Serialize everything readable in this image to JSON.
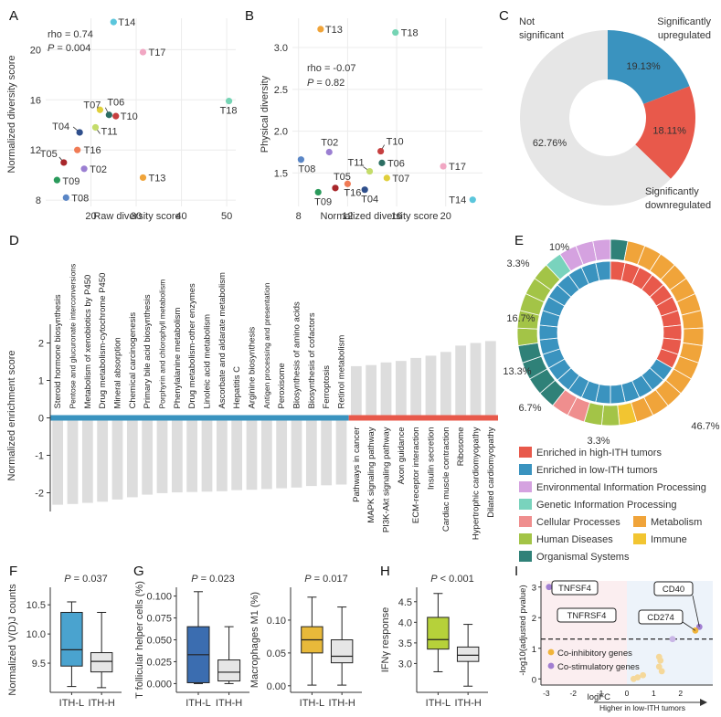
{
  "colors": {
    "up": "#e8594b",
    "down": "#3a93bf",
    "ns": "#e6e6e6",
    "bar_gray": "#dddddd",
    "metabolism": "#f0a43a",
    "immune": "#f2c531",
    "env": "#d5a2e0",
    "genetic": "#79d3bd",
    "cellular": "#ef8e8e",
    "human": "#a3c447",
    "organismal": "#2f8178",
    "box_blue": "#3b6db0",
    "box_gold": "#e8b93a",
    "box_lime": "#b6d13a",
    "box_gray": "#e6e6e6",
    "inhib": "#f0b43a",
    "costim": "#a17ed1"
  },
  "chart_data": [
    {
      "id": "A",
      "type": "scatter",
      "panel_letter": "A",
      "xlabel": "Raw diversity score",
      "ylabel": "Normalized diversity score",
      "xlim": [
        10,
        52
      ],
      "ylim": [
        7.5,
        22.5
      ],
      "xticks": [
        20,
        30,
        40,
        50
      ],
      "yticks": [
        8,
        12,
        16,
        20
      ],
      "stat_rho": "rho = 0.74",
      "stat_p_label": "P",
      "stat_p_value": " = 0.004",
      "points": [
        {
          "label": "T14",
          "x": 25,
          "y": 22.2,
          "color": "#5bc6dc"
        },
        {
          "label": "T17",
          "x": 31.5,
          "y": 19.8,
          "color": "#f1a7c3"
        },
        {
          "label": "T18",
          "x": 50.5,
          "y": 15.9,
          "color": "#75d4b4"
        },
        {
          "label": "T06",
          "x": 24,
          "y": 14.8,
          "color": "#2c6e63"
        },
        {
          "label": "T07",
          "x": 22,
          "y": 15.2,
          "color": "#e0cf3c"
        },
        {
          "label": "T10",
          "x": 25.5,
          "y": 14.7,
          "color": "#c63f3f"
        },
        {
          "label": "T11",
          "x": 21,
          "y": 13.8,
          "color": "#c4dc6a"
        },
        {
          "label": "T04",
          "x": 17.5,
          "y": 13.4,
          "color": "#2f4f8c"
        },
        {
          "label": "T16",
          "x": 17,
          "y": 12.0,
          "color": "#f07b55"
        },
        {
          "label": "T05",
          "x": 14,
          "y": 11.0,
          "color": "#a8262a"
        },
        {
          "label": "T02",
          "x": 18.5,
          "y": 10.5,
          "color": "#9b7fd2"
        },
        {
          "label": "T13",
          "x": 31.5,
          "y": 9.8,
          "color": "#f0a43a"
        },
        {
          "label": "T09",
          "x": 12.5,
          "y": 9.6,
          "color": "#2a9a5b"
        },
        {
          "label": "T08",
          "x": 14.5,
          "y": 8.2,
          "color": "#5a86c6"
        }
      ]
    },
    {
      "id": "B",
      "type": "scatter",
      "panel_letter": "B",
      "xlabel": "Normalized diversity score",
      "ylabel": "Physical diversity",
      "xlim": [
        7.5,
        23
      ],
      "ylim": [
        1.1,
        3.35
      ],
      "xticks": [
        8,
        12,
        16,
        20
      ],
      "yticks": [
        1.5,
        2.0,
        2.5,
        3.0
      ],
      "stat_rho": "rho = -0.07",
      "stat_p_label": "P",
      "stat_p_value": " = 0.82",
      "points": [
        {
          "label": "T13",
          "x": 9.8,
          "y": 3.22,
          "color": "#f0a43a"
        },
        {
          "label": "T18",
          "x": 15.9,
          "y": 3.18,
          "color": "#75d4b4"
        },
        {
          "label": "T02",
          "x": 10.5,
          "y": 1.75,
          "color": "#9b7fd2"
        },
        {
          "label": "T10",
          "x": 14.7,
          "y": 1.76,
          "color": "#c63f3f"
        },
        {
          "label": "T08",
          "x": 8.2,
          "y": 1.66,
          "color": "#5a86c6"
        },
        {
          "label": "T11",
          "x": 13.8,
          "y": 1.52,
          "color": "#c4dc6a"
        },
        {
          "label": "T06",
          "x": 14.8,
          "y": 1.62,
          "color": "#2c6e63"
        },
        {
          "label": "T05",
          "x": 11.0,
          "y": 1.32,
          "color": "#a8262a"
        },
        {
          "label": "T16",
          "x": 12.0,
          "y": 1.37,
          "color": "#f07b55"
        },
        {
          "label": "T17",
          "x": 19.8,
          "y": 1.58,
          "color": "#f1a7c3"
        },
        {
          "label": "T07",
          "x": 15.2,
          "y": 1.44,
          "color": "#e0cf3c"
        },
        {
          "label": "T09",
          "x": 9.6,
          "y": 1.27,
          "color": "#2a9a5b"
        },
        {
          "label": "T04",
          "x": 13.4,
          "y": 1.3,
          "color": "#2f4f8c"
        },
        {
          "label": "T14",
          "x": 22.2,
          "y": 1.18,
          "color": "#5bc6dc"
        }
      ]
    },
    {
      "id": "C",
      "type": "pie",
      "panel_letter": "C",
      "slices": [
        {
          "label": "Significantly upregulated",
          "value": 19.13,
          "text": "19.13%",
          "color": "#3a93bf"
        },
        {
          "label": "Significantly downregulated",
          "value": 18.11,
          "text": "18.11%",
          "color": "#e8594b"
        },
        {
          "label": "Not significant",
          "value": 62.76,
          "text": "62.76%",
          "color": "#e6e6e6"
        }
      ],
      "outer_labels": {
        "up_line1": "Significantly",
        "up_line2": "upregulated",
        "down_line1": "Significantly",
        "down_line2": "downregulated",
        "ns_line1": "Not",
        "ns_line2": "significant"
      }
    },
    {
      "id": "D",
      "type": "bar",
      "panel_letter": "D",
      "ylabel": "Normalized enrichment score",
      "ylim": [
        -2.5,
        2.5
      ],
      "yticks": [
        -2,
        -1,
        0,
        1,
        2
      ],
      "negative": [
        {
          "label": "Steroid hormone biosynthesis",
          "value": -2.32
        },
        {
          "label": "Pentose and glucuronate interconversions",
          "value": -2.3
        },
        {
          "label": "Metabolism of xenobiotics by P450",
          "value": -2.27
        },
        {
          "label": "Drug metabolism-cytochrome P450",
          "value": -2.24
        },
        {
          "label": "Mineral absorption",
          "value": -2.18
        },
        {
          "label": "Chemical carcinogenesis",
          "value": -2.12
        },
        {
          "label": "Primary bile acid biosynthesis",
          "value": -2.05
        },
        {
          "label": "Porphyrin and chlorophyll metabolism",
          "value": -2.01
        },
        {
          "label": "Phenylalanine metabolism",
          "value": -1.99
        },
        {
          "label": "Drug metabolism-other enzymes",
          "value": -1.98
        },
        {
          "label": "Linoleic acid metabolism",
          "value": -1.97
        },
        {
          "label": "Ascorbate and aldarate metabolism",
          "value": -1.96
        },
        {
          "label": "Hepatitis C",
          "value": -1.93
        },
        {
          "label": "Arginine biosynthesis",
          "value": -1.92
        },
        {
          "label": "Antigen processing and presentation",
          "value": -1.9
        },
        {
          "label": "Peroxisome",
          "value": -1.88
        },
        {
          "label": "Biosynthesis of amino acids",
          "value": -1.86
        },
        {
          "label": "Biosynthesis of cofactors",
          "value": -1.82
        },
        {
          "label": "Ferroptosis",
          "value": -1.8
        },
        {
          "label": "Retinol metabolism",
          "value": -1.78
        }
      ],
      "positive": [
        {
          "label": "Pathways in cancer",
          "value": 1.38
        },
        {
          "label": "MAPK signaling pathway",
          "value": 1.41
        },
        {
          "label": "PI3K-Akt signaling pathway",
          "value": 1.48
        },
        {
          "label": "Axon guidance",
          "value": 1.52
        },
        {
          "label": "ECM-receptor interaction",
          "value": 1.6
        },
        {
          "label": "Insulin secretion",
          "value": 1.66
        },
        {
          "label": "Cardiac muscle contraction",
          "value": 1.76
        },
        {
          "label": "Ribosome",
          "value": 1.93
        },
        {
          "label": "Hypertrophic cardiomyopathy",
          "value": 2.0
        },
        {
          "label": "Dilated cardiomyopathy",
          "value": 2.05
        }
      ]
    },
    {
      "id": "E",
      "type": "pie",
      "panel_letter": "E",
      "outer_ring": [
        {
          "category": "Organismal Systems",
          "value": 3.3,
          "color": "#2f8178"
        },
        {
          "category": "Metabolism",
          "value": 46.7,
          "color": "#f0a43a",
          "text": "46.7%"
        },
        {
          "category": "Immune",
          "value": 3.3,
          "color": "#f2c531",
          "text": "3.3%"
        },
        {
          "category": "Human Diseases",
          "value": 6.7,
          "color": "#a3c447"
        },
        {
          "category": "Cellular Processes",
          "value": 6.7,
          "color": "#ef8e8e",
          "text": "6.7%"
        },
        {
          "category": "Organismal Systems",
          "value": 13.3,
          "color": "#2f8178",
          "text": "13.3%"
        },
        {
          "category": "Human Diseases",
          "value": 16.7,
          "color": "#a3c447",
          "text": "16.7%"
        },
        {
          "category": "Genetic Information Processing",
          "value": 3.3,
          "color": "#79d3bd",
          "text": "3.3%"
        },
        {
          "category": "Environmental Information Processing",
          "value": 10,
          "color": "#d5a2e0",
          "text": "10%"
        }
      ],
      "inner_ring": [
        {
          "category": "Enriched in high-ITH tumors",
          "value": 33.3,
          "color": "#e8594b"
        },
        {
          "category": "Enriched in low-ITH tumors",
          "value": 66.7,
          "color": "#3a93bf"
        }
      ],
      "legend": [
        {
          "label": "Enriched in high-ITH tumors",
          "color": "#e8594b"
        },
        {
          "label": "Enriched in low-ITH tumors",
          "color": "#3a93bf"
        },
        {
          "label": "Environmental Information Processing",
          "color": "#d5a2e0"
        },
        {
          "label": "Genetic Information Processing",
          "color": "#79d3bd"
        },
        {
          "label": "Cellular Processes",
          "color": "#ef8e8e"
        },
        {
          "label": "Metabolism",
          "color": "#f0a43a"
        },
        {
          "label": "Human Diseases",
          "color": "#a3c447"
        },
        {
          "label": "Immune",
          "color": "#f2c531"
        },
        {
          "label": "Organismal Systems",
          "color": "#2f8178"
        }
      ]
    },
    {
      "id": "F",
      "type": "boxplot",
      "panel_letter": "F",
      "ylabel": "Normalized V(D)J counts",
      "ylim": [
        9.0,
        10.8
      ],
      "yticks": [
        9.5,
        10.0,
        10.5
      ],
      "p_label": "P",
      "p_value": " = 0.037",
      "categories": [
        "ITH-L",
        "ITH-H"
      ],
      "boxes": [
        {
          "min": 9.1,
          "q1": 9.45,
          "median": 9.73,
          "q3": 10.37,
          "max": 10.55,
          "color": "#4aa3cf"
        },
        {
          "min": 9.08,
          "q1": 9.35,
          "median": 9.53,
          "q3": 9.68,
          "max": 10.37,
          "color": "#e6e6e6"
        }
      ]
    },
    {
      "id": "G1",
      "type": "boxplot",
      "panel_letter": "G",
      "ylabel": "T follicular helper cells (%)",
      "ylim": [
        -0.01,
        0.11
      ],
      "yticks": [
        0.0,
        0.025,
        0.05,
        0.075,
        0.1
      ],
      "ytick_labels": [
        "0.000",
        "0.025",
        "0.050",
        "0.075",
        "0.100"
      ],
      "p_label": "P",
      "p_value": " = 0.023",
      "categories": [
        "ITH-L",
        "ITH-H"
      ],
      "boxes": [
        {
          "min": 0.0,
          "q1": 0.001,
          "median": 0.033,
          "q3": 0.065,
          "max": 0.105,
          "color": "#3b6db0"
        },
        {
          "min": 0.0,
          "q1": 0.003,
          "median": 0.013,
          "q3": 0.027,
          "max": 0.065,
          "color": "#e6e6e6"
        }
      ]
    },
    {
      "id": "G2",
      "type": "boxplot",
      "panel_letter": "",
      "ylabel": "Macrophages M1 (%)",
      "ylim": [
        -0.01,
        0.15
      ],
      "yticks": [
        0.0,
        0.05,
        0.1
      ],
      "ytick_labels": [
        "0.00",
        "0.05",
        "0.10"
      ],
      "p_label": "P",
      "p_value": " = 0.017",
      "categories": [
        "ITH-L",
        "ITH-H"
      ],
      "boxes": [
        {
          "min": 0.001,
          "q1": 0.05,
          "median": 0.07,
          "q3": 0.09,
          "max": 0.135,
          "color": "#e8b93a"
        },
        {
          "min": 0.001,
          "q1": 0.035,
          "median": 0.045,
          "q3": 0.07,
          "max": 0.12,
          "color": "#e6e6e6"
        }
      ]
    },
    {
      "id": "H",
      "type": "boxplot",
      "panel_letter": "H",
      "ylabel": "IFNγ response",
      "ylim": [
        2.3,
        4.85
      ],
      "yticks": [
        3.0,
        3.5,
        4.0,
        4.5
      ],
      "p_label": "P",
      "p_value": " < 0.001",
      "categories": [
        "ITH-L",
        "ITH-H"
      ],
      "boxes": [
        {
          "min": 2.8,
          "q1": 3.35,
          "median": 3.58,
          "q3": 4.12,
          "max": 4.7,
          "color": "#b6d13a"
        },
        {
          "min": 2.45,
          "q1": 3.05,
          "median": 3.2,
          "q3": 3.4,
          "max": 3.95,
          "color": "#e6e6e6"
        }
      ]
    },
    {
      "id": "I",
      "type": "scatter",
      "panel_letter": "I",
      "xlabel": "logFC",
      "ylabel": "-log10(adjusted pvalue)",
      "xlim": [
        -3.2,
        3.2
      ],
      "ylim": [
        -0.2,
        3.2
      ],
      "xticks": [
        -3,
        -2,
        -1,
        0,
        1,
        2
      ],
      "yticks": [
        0,
        1,
        2,
        3
      ],
      "threshold": 1.3,
      "arrow_label": "Higher in low-ITH tumors",
      "points": [
        {
          "x": -2.9,
          "y": 3.0,
          "color": "#a17ed1"
        },
        {
          "x": -2.2,
          "y": 2.1,
          "color": "#a17ed1"
        },
        {
          "x": 2.7,
          "y": 1.7,
          "color": "#a17ed1"
        },
        {
          "x": 2.55,
          "y": 1.58,
          "color": "#f0b43a"
        },
        {
          "x": 1.7,
          "y": 1.3,
          "color": "#c9b6e6"
        },
        {
          "x": 1.2,
          "y": 0.72,
          "color": "#f5d89a"
        },
        {
          "x": 1.25,
          "y": 0.6,
          "color": "#f5d89a"
        },
        {
          "x": 1.2,
          "y": 0.4,
          "color": "#f5d89a"
        },
        {
          "x": 1.3,
          "y": 0.25,
          "color": "#f5d89a"
        },
        {
          "x": 0.6,
          "y": 0.12,
          "color": "#f5d89a"
        },
        {
          "x": 0.4,
          "y": 0.05,
          "color": "#f5d89a"
        },
        {
          "x": 0.25,
          "y": 0.0,
          "color": "#f5d89a"
        }
      ],
      "gene_labels": [
        "TNFSF4",
        "TNFRSF4",
        "CD40",
        "CD274"
      ],
      "legend": [
        {
          "label": "Co-inhibitory genes",
          "color": "#f0b43a"
        },
        {
          "label": "Co-stimulatory genes",
          "color": "#a17ed1"
        }
      ]
    }
  ]
}
